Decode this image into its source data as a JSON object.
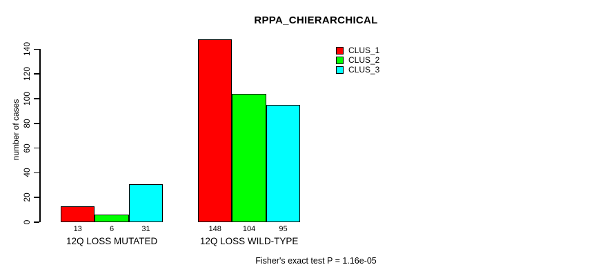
{
  "title": "RPPA_CHIERARCHICAL",
  "y_axis": {
    "label": "number of cases",
    "ticks": [
      0,
      20,
      40,
      60,
      80,
      100,
      120,
      140
    ]
  },
  "footer": "Fisher's exact test P = 1.16e-05",
  "chart_data": {
    "type": "bar",
    "title": "RPPA_CHIERARCHICAL",
    "xlabel": "",
    "ylabel": "number of cases",
    "categories": [
      "12Q LOSS MUTATED",
      "12Q LOSS WILD-TYPE"
    ],
    "series": [
      {
        "name": "CLUS_1",
        "color": "#ff0000",
        "values": [
          13,
          148
        ]
      },
      {
        "name": "CLUS_2",
        "color": "#00ff00",
        "values": [
          6,
          104
        ]
      },
      {
        "name": "CLUS_3",
        "color": "#00ffff",
        "values": [
          31,
          95
        ]
      }
    ],
    "bar_value_labels": [
      [
        13,
        6,
        31
      ],
      [
        148,
        104,
        95
      ]
    ],
    "ylim": [
      0,
      140
    ],
    "yticks": [
      0,
      20,
      40,
      60,
      80,
      100,
      120,
      140
    ],
    "grid": false,
    "legend_position": "top-right",
    "annotation": "Fisher's exact test P = 1.16e-05"
  }
}
